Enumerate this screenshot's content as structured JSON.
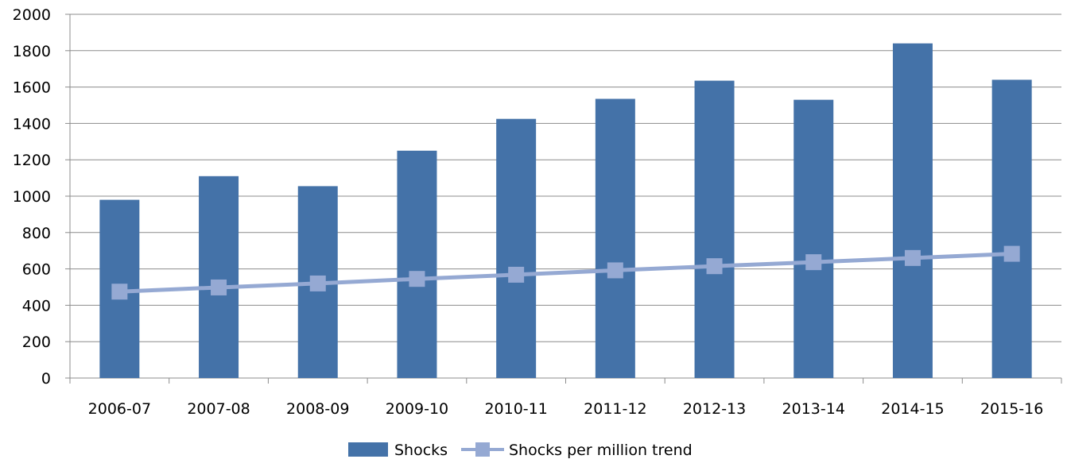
{
  "chart_data": {
    "type": "bar",
    "categories": [
      "2006-07",
      "2007-08",
      "2008-09",
      "2009-10",
      "2010-11",
      "2011-12",
      "2012-13",
      "2013-14",
      "2014-15",
      "2015-16"
    ],
    "series": [
      {
        "name": "Shocks",
        "type": "bar",
        "color": "#4472A8",
        "values": [
          980,
          1110,
          1055,
          1250,
          1425,
          1535,
          1635,
          1530,
          1840,
          1640
        ]
      },
      {
        "name": "Shocks per million trend",
        "type": "line",
        "color": "#95A9D3",
        "marker": "square",
        "values": [
          475,
          498,
          520,
          545,
          568,
          592,
          615,
          637,
          660,
          683
        ]
      }
    ],
    "title": "",
    "xlabel": "",
    "ylabel": "",
    "ylim": [
      0,
      2000
    ],
    "yticks": [
      0,
      200,
      400,
      600,
      800,
      1000,
      1200,
      1400,
      1600,
      1800,
      2000
    ],
    "grid": true,
    "legend": "bottom-center"
  }
}
